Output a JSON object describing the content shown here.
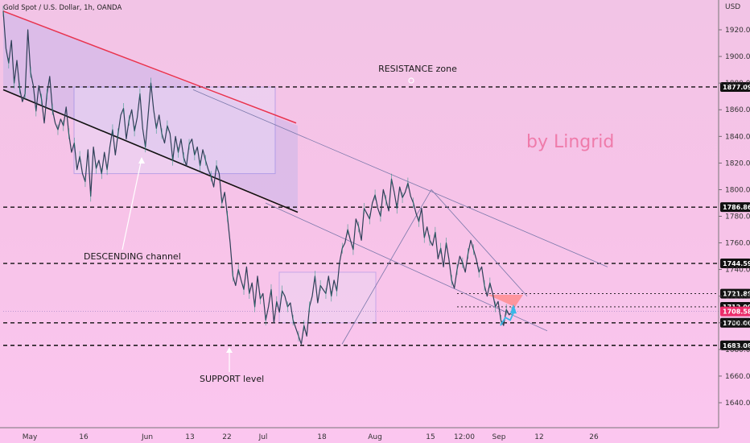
{
  "chart_data": {
    "type": "line",
    "title": "Gold Spot / U.S. Dollar, 1h, OANDA",
    "currency": "USD",
    "watermark": "by Lingrid",
    "x_ticks": [
      "May",
      "16",
      "Jun",
      "13",
      "22",
      "Jul",
      "18",
      "Aug",
      "15",
      "12:00",
      "Sep",
      "12",
      "26"
    ],
    "y_ticks": [
      1920,
      1900,
      1880,
      1860,
      1840,
      1820,
      1800,
      1780,
      1760,
      1740,
      1720,
      1700,
      1680,
      1660,
      1640
    ],
    "ylim": [
      1620,
      1936
    ],
    "y_tick_labels": [
      "1920.000",
      "1900.000",
      "1880.000",
      "1860.000",
      "1840.000",
      "1820.000",
      "1800.000",
      "1780.000",
      "1760.000",
      "1740.000",
      "1720.000",
      "1700.000",
      "1680.000",
      "1660.000",
      "1640.000"
    ],
    "price_levels": [
      {
        "value": 1877.091,
        "label": "1877.091"
      },
      {
        "value": 1786.861,
        "label": "1786.861"
      },
      {
        "value": 1744.595,
        "label": "1744.595"
      },
      {
        "value": 1721.898,
        "label": "1721.898"
      },
      {
        "value": 1712.0,
        "label": "1712.000"
      },
      {
        "value": 1708.585,
        "label": "1708.585",
        "current": true
      },
      {
        "value": 1700.0,
        "label": "1700.000"
      },
      {
        "value": 1683.082,
        "label": "1683.082"
      }
    ],
    "series": [
      {
        "values": [
          1934,
          1906,
          1895,
          1912,
          1880,
          1897,
          1876,
          1866,
          1872,
          1920,
          1888,
          1878,
          1859,
          1878,
          1868,
          1850,
          1872,
          1885,
          1860,
          1850,
          1845,
          1853,
          1848,
          1862,
          1842,
          1828,
          1835,
          1815,
          1825,
          1812,
          1806,
          1830,
          1795,
          1832,
          1816,
          1822,
          1812,
          1828,
          1815,
          1832,
          1845,
          1826,
          1842,
          1856,
          1861,
          1838,
          1852,
          1860,
          1844,
          1854,
          1872,
          1846,
          1832,
          1856,
          1880,
          1860,
          1846,
          1856,
          1842,
          1835,
          1848,
          1842,
          1822,
          1840,
          1828,
          1838,
          1824,
          1818,
          1834,
          1838,
          1826,
          1832,
          1818,
          1830,
          1822,
          1815,
          1810,
          1802,
          1818,
          1812,
          1790,
          1798,
          1780,
          1760,
          1735,
          1728,
          1740,
          1732,
          1725,
          1742,
          1722,
          1730,
          1712,
          1735,
          1718,
          1722,
          1702,
          1712,
          1725,
          1700,
          1716,
          1708,
          1724,
          1720,
          1712,
          1715,
          1702,
          1696,
          1690,
          1684,
          1698,
          1690,
          1712,
          1720,
          1735,
          1715,
          1728,
          1725,
          1722,
          1735,
          1720,
          1732,
          1724,
          1745,
          1756,
          1760,
          1770,
          1762,
          1755,
          1778,
          1772,
          1762,
          1786,
          1782,
          1778,
          1790,
          1796,
          1786,
          1780,
          1800,
          1792,
          1784,
          1808,
          1798,
          1786,
          1802,
          1794,
          1798,
          1805,
          1795,
          1790,
          1782,
          1776,
          1786,
          1764,
          1772,
          1762,
          1758,
          1768,
          1748,
          1756,
          1742,
          1760,
          1748,
          1732,
          1726,
          1740,
          1750,
          1745,
          1738,
          1752,
          1762,
          1755,
          1748,
          1738,
          1742,
          1728,
          1720,
          1730,
          1722,
          1712,
          1716,
          1702,
          1698,
          1710,
          1706,
          1708
        ]
      }
    ],
    "forecast_values": [
      1698,
      1704,
      1702,
      1710
    ],
    "annotations": [
      {
        "text": "RESISTANCE zone",
        "x_index": 143,
        "y": 1890
      },
      {
        "text": "DESCENDING channel",
        "x_index": 42,
        "y": 1745
      },
      {
        "text": "SUPPORT level",
        "x_index": 76,
        "y": 1662
      }
    ]
  }
}
